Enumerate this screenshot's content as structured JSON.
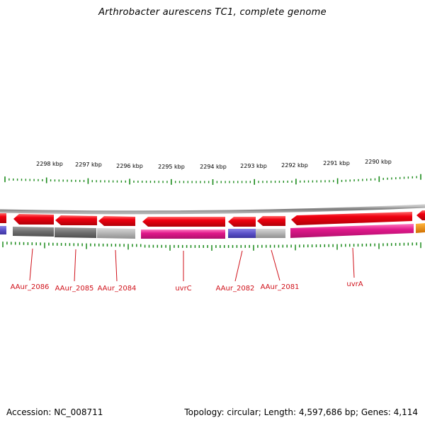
{
  "title": "Arthrobacter aurescens TC1, complete genome",
  "footer": {
    "accession": "Accession: NC_008711",
    "topology": "Topology: circular; Length: 4,597,686 bp; Genes: 4,114"
  },
  "kbp_labels": [
    "2298 kbp",
    "2297 kbp",
    "2296 kbp",
    "2295 kbp",
    "2294 kbp",
    "2293 kbp",
    "2292 kbp",
    "2291 kbp",
    "2290 kbp"
  ],
  "genes": [
    {
      "name": "AAur_2086",
      "strand": "-"
    },
    {
      "name": "AAur_2085",
      "strand": "-"
    },
    {
      "name": "AAur_2084",
      "strand": "-"
    },
    {
      "name": "uvrC",
      "strand": "-"
    },
    {
      "name": "AAur_2082",
      "strand": "-"
    },
    {
      "name": "AAur_2081",
      "strand": "-"
    },
    {
      "name": "uvrA",
      "strand": "-"
    }
  ],
  "colors": {
    "cds": "#e8000b",
    "backbone": "#8a8a8a",
    "tick": "#1a8a1a",
    "label": "#d0111a",
    "feature_magenta": "#e0188a",
    "feature_blue": "#5a50c8",
    "feature_gray_dark": "#6e6e6e",
    "feature_gray_light": "#b4b4b4",
    "feature_orange": "#f08c00"
  }
}
